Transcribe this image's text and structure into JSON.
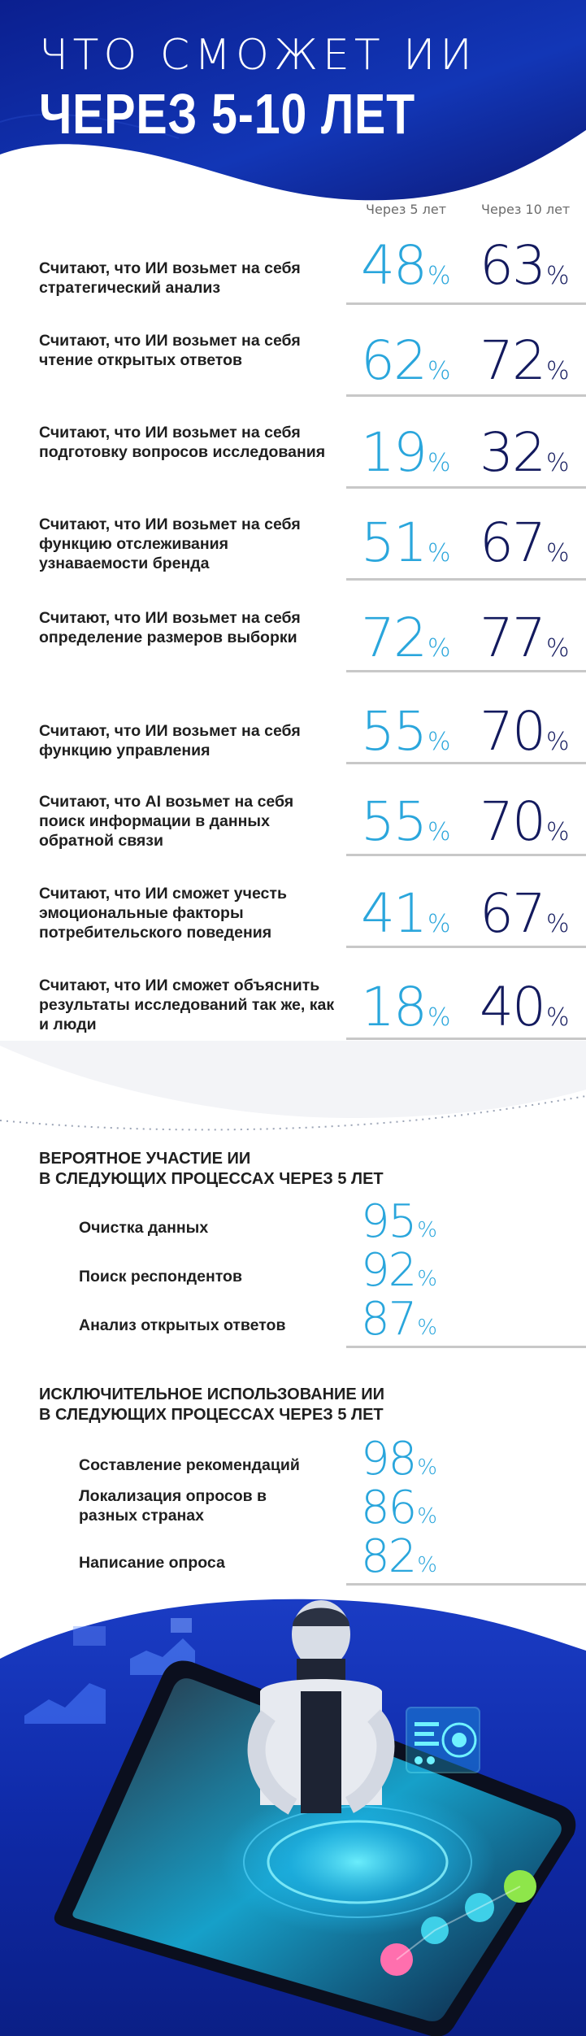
{
  "header": {
    "title_line1": "ЧТО СМОЖЕТ ИИ",
    "title_line2": "ЧЕРЕЗ 5-10 ЛЕТ"
  },
  "columns": {
    "five": "Через 5 лет",
    "ten": "Через 10 лет"
  },
  "stats": [
    {
      "label": "Считают, что ИИ возьмет на себя стратегический анализ",
      "v5": "48",
      "v10": "63"
    },
    {
      "label": "Считают, что ИИ возьмет на себя чтение открытых ответов",
      "v5": "62",
      "v10": "72"
    },
    {
      "label": "Считают, что ИИ возьмет на себя подготовку вопросов исследования",
      "v5": "19",
      "v10": "32"
    },
    {
      "label": "Считают, что ИИ возьмет на себя функцию отслеживания узнаваемости бренда",
      "v5": "51",
      "v10": "67"
    },
    {
      "label": "Считают, что ИИ возьмет на себя определение размеров выборки",
      "v5": "72",
      "v10": "77"
    },
    {
      "label": "Считают, что ИИ возьмет на себя функцию управления",
      "v5": "55",
      "v10": "70"
    },
    {
      "label": "Считают, что AI возьмет на себя поиск информации в данных обратной связи",
      "v5": "55",
      "v10": "70"
    },
    {
      "label": "Считают, что ИИ сможет учесть эмоциональные факторы потребительского поведения",
      "v5": "41",
      "v10": "67"
    },
    {
      "label": "Считают, что ИИ сможет объяснить результаты исследований так же, как и люди",
      "v5": "18",
      "v10": "40"
    }
  ],
  "percent_sign": "%",
  "section1": {
    "title_line1": "ВЕРОЯТНОЕ УЧАСТИЕ ИИ",
    "title_line2": "В СЛЕДУЮЩИХ ПРОЦЕССАХ ЧЕРЕЗ 5 ЛЕТ",
    "items": [
      {
        "label": "Очистка данных",
        "value": "95"
      },
      {
        "label": "Поиск респондентов",
        "value": "92"
      },
      {
        "label": "Анализ открытых ответов",
        "value": "87"
      }
    ]
  },
  "section2": {
    "title_line1": "ИСКЛЮЧИТЕЛЬНОЕ ИСПОЛЬЗОВАНИЕ ИИ",
    "title_line2": "В СЛЕДУЮЩИХ ПРОЦЕССАХ ЧЕРЕЗ 5 ЛЕТ",
    "items": [
      {
        "label": "Составление рекомендаций",
        "value": "98"
      },
      {
        "label": "Локализация опросов в разных странах",
        "value": "86"
      },
      {
        "label": "Написание опроса",
        "value": "82"
      }
    ]
  },
  "colors": {
    "accent_light": "#2aa6dc",
    "accent_dark": "#131a5e",
    "header_blue": "#1230a8"
  }
}
